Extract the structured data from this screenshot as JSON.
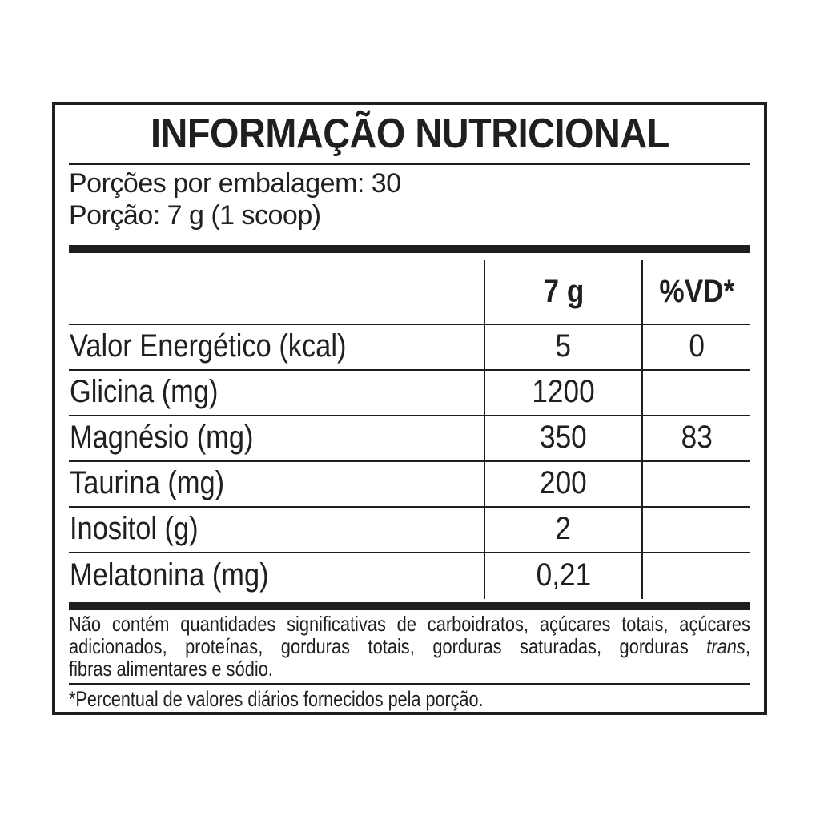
{
  "nutrition_label": {
    "title": "INFORMAÇÃO NUTRICIONAL",
    "servings_per_package": "Porções por embalagem: 30",
    "serving_size": "Porção: 7 g (1 scoop)",
    "table": {
      "amount_header": "7 g",
      "dv_header": "%VD*",
      "rows": [
        {
          "nutrient": "Valor Energético (kcal)",
          "amount": "5",
          "dv": "0"
        },
        {
          "nutrient": "Glicina (mg)",
          "amount": "1200",
          "dv": ""
        },
        {
          "nutrient": "Magnésio (mg)",
          "amount": "350",
          "dv": "83"
        },
        {
          "nutrient": "Taurina (mg)",
          "amount": "200",
          "dv": ""
        },
        {
          "nutrient": "Inositol (g)",
          "amount": "2",
          "dv": ""
        },
        {
          "nutrient": "Melatonina (mg)",
          "amount": "0,21",
          "dv": ""
        }
      ]
    },
    "note": {
      "line1": "Não contém quantidades significativas de carboidratos, açúcares totais, açúcares",
      "line2_before_italic": "adicionados, proteínas, gorduras totais, gorduras saturadas, gorduras",
      "line2_italic": "trans",
      "line2_after_italic": ",",
      "line3": "fibras alimentares e sódio."
    },
    "footnote": "*Percentual de valores diários fornecidos pela porção.",
    "colors": {
      "ink": "#211e1f",
      "background": "#ffffff"
    }
  }
}
